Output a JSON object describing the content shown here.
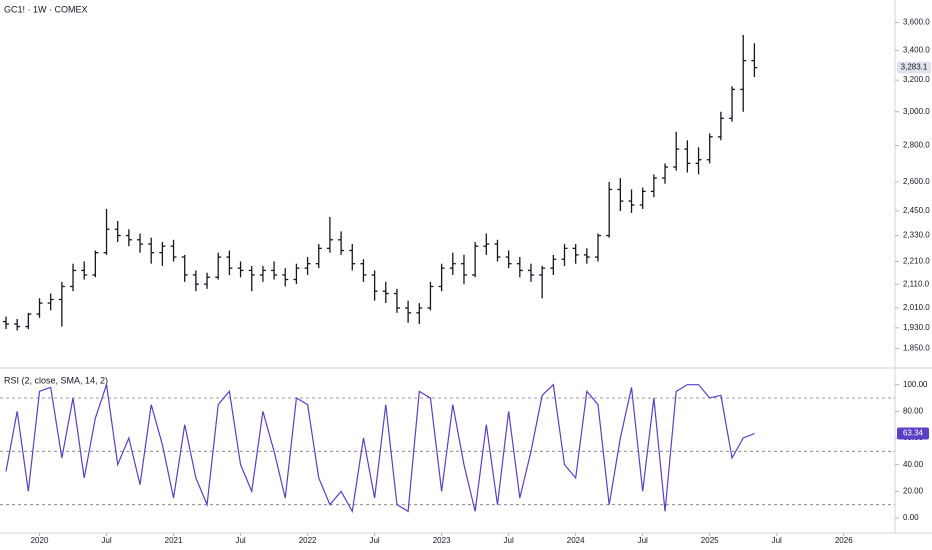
{
  "chart_data": [
    {
      "type": "ohlc",
      "title": "GC1! · 1W · COMEX",
      "log": true,
      "color": "#131722",
      "x": [
        "2019-10",
        "2019-11",
        "2019-12",
        "2020-01",
        "2020-02",
        "2020-03",
        "2020-04",
        "2020-05",
        "2020-06",
        "2020-07",
        "2020-08",
        "2020-09",
        "2020-10",
        "2020-11",
        "2020-12",
        "2021-01",
        "2021-02",
        "2021-03",
        "2021-04",
        "2021-05",
        "2021-06",
        "2021-07",
        "2021-08",
        "2021-09",
        "2021-10",
        "2021-11",
        "2021-12",
        "2022-01",
        "2022-02",
        "2022-03",
        "2022-04",
        "2022-05",
        "2022-06",
        "2022-07",
        "2022-08",
        "2022-09",
        "2022-10",
        "2022-11",
        "2022-12",
        "2023-01",
        "2023-02",
        "2023-03",
        "2023-04",
        "2023-05",
        "2023-06",
        "2023-07",
        "2023-08",
        "2023-09",
        "2023-10",
        "2023-11",
        "2023-12",
        "2024-01",
        "2024-02",
        "2024-03",
        "2024-04",
        "2024-05",
        "2024-06",
        "2024-07",
        "2024-08",
        "2024-09",
        "2024-10",
        "2024-11",
        "2024-12",
        "2025-01",
        "2025-02",
        "2025-03",
        "2025-04",
        "2025-05"
      ],
      "open": [
        1955,
        1945,
        1935,
        1985,
        2030,
        2045,
        2100,
        2170,
        2150,
        2250,
        2360,
        2330,
        2310,
        2290,
        2250,
        2280,
        2230,
        2150,
        2110,
        2140,
        2230,
        2180,
        2170,
        2150,
        2170,
        2150,
        2130,
        2180,
        2200,
        2270,
        2310,
        2260,
        2200,
        2150,
        2080,
        2070,
        2010,
        1990,
        2010,
        2100,
        2180,
        2200,
        2150,
        2280,
        2290,
        2230,
        2200,
        2170,
        2150,
        2180,
        2220,
        2270,
        2240,
        2230,
        2330,
        2560,
        2500,
        2480,
        2550,
        2620,
        2680,
        2780,
        2700,
        2720,
        2850,
        2960,
        3140,
        3330
      ],
      "high": [
        1975,
        1965,
        1990,
        2050,
        2070,
        2120,
        2200,
        2210,
        2260,
        2460,
        2400,
        2360,
        2340,
        2320,
        2300,
        2310,
        2240,
        2170,
        2160,
        2250,
        2260,
        2210,
        2190,
        2190,
        2210,
        2180,
        2200,
        2230,
        2290,
        2420,
        2350,
        2290,
        2220,
        2170,
        2120,
        2090,
        2040,
        2030,
        2120,
        2200,
        2250,
        2240,
        2300,
        2340,
        2310,
        2260,
        2230,
        2200,
        2190,
        2240,
        2290,
        2290,
        2270,
        2340,
        2600,
        2620,
        2560,
        2570,
        2640,
        2700,
        2880,
        2830,
        2790,
        2870,
        3000,
        3160,
        3510,
        3450
      ],
      "low": [
        1925,
        1920,
        1925,
        1970,
        2000,
        1935,
        2080,
        2130,
        2140,
        2240,
        2300,
        2280,
        2250,
        2200,
        2190,
        2210,
        2120,
        2080,
        2090,
        2130,
        2150,
        2140,
        2080,
        2120,
        2130,
        2100,
        2110,
        2150,
        2180,
        2250,
        2240,
        2170,
        2120,
        2040,
        2030,
        1990,
        1950,
        1945,
        2000,
        2080,
        2150,
        2110,
        2140,
        2240,
        2210,
        2180,
        2140,
        2120,
        2050,
        2150,
        2190,
        2200,
        2200,
        2210,
        2320,
        2450,
        2440,
        2460,
        2520,
        2590,
        2660,
        2650,
        2640,
        2700,
        2830,
        2940,
        3000,
        3220
      ],
      "close": [
        1945,
        1935,
        1985,
        2030,
        2045,
        2100,
        2170,
        2150,
        2250,
        2360,
        2330,
        2310,
        2290,
        2250,
        2280,
        2230,
        2150,
        2110,
        2140,
        2230,
        2180,
        2170,
        2150,
        2170,
        2150,
        2130,
        2180,
        2200,
        2270,
        2310,
        2260,
        2200,
        2150,
        2080,
        2070,
        2010,
        1990,
        2010,
        2100,
        2180,
        2200,
        2150,
        2280,
        2290,
        2230,
        2200,
        2170,
        2150,
        2180,
        2220,
        2270,
        2240,
        2230,
        2330,
        2560,
        2500,
        2480,
        2550,
        2620,
        2680,
        2780,
        2700,
        2720,
        2850,
        2960,
        3140,
        3330,
        3283.1
      ],
      "last_price": {
        "value": 3283.1,
        "label": "3,283.1"
      },
      "ylim": [
        1800,
        3700
      ],
      "yticks": [
        {
          "value": 1850,
          "label": "1,850.0"
        },
        {
          "value": 1930,
          "label": "1,930.0"
        },
        {
          "value": 2010,
          "label": "2,010.0"
        },
        {
          "value": 2110,
          "label": "2,110.0"
        },
        {
          "value": 2210,
          "label": "2,210.0"
        },
        {
          "value": 2330,
          "label": "2,330.0"
        },
        {
          "value": 2450,
          "label": "2,450.0"
        },
        {
          "value": 2600,
          "label": "2,600.0"
        },
        {
          "value": 2800,
          "label": "2,800.0"
        },
        {
          "value": 3000,
          "label": "3,000.0"
        },
        {
          "value": 3200,
          "label": "3,200.0"
        },
        {
          "value": 3400,
          "label": "3,400.0"
        },
        {
          "value": 3600,
          "label": "3,600.0"
        }
      ]
    },
    {
      "type": "line",
      "title": "RSI (2, close, SMA, 14, 2)",
      "color": "#5b3fc4",
      "values": [
        35,
        80,
        20,
        95,
        98,
        45,
        90,
        30,
        75,
        100,
        40,
        60,
        25,
        85,
        55,
        15,
        70,
        30,
        10,
        85,
        95,
        40,
        20,
        80,
        50,
        15,
        90,
        85,
        30,
        10,
        20,
        5,
        60,
        15,
        85,
        10,
        5,
        95,
        90,
        20,
        85,
        40,
        5,
        70,
        10,
        80,
        15,
        50,
        92,
        100,
        40,
        30,
        95,
        85,
        10,
        60,
        98,
        20,
        90,
        5,
        95,
        100,
        100,
        90,
        92,
        45,
        60,
        63.34
      ],
      "levels": [
        90,
        50,
        10
      ],
      "ylim": [
        -12,
        108
      ],
      "yticks": [
        {
          "value": 100,
          "label": "100.00"
        },
        {
          "value": 80,
          "label": "80.00"
        },
        {
          "value": 60,
          "label": "60.00"
        },
        {
          "value": 40,
          "label": "40.00"
        },
        {
          "value": 20,
          "label": "20.00"
        },
        {
          "value": 0,
          "label": "0.00"
        }
      ],
      "xticks": [
        {
          "value": "2020-01",
          "label": "2020"
        },
        {
          "value": "2020-07",
          "label": "Jul"
        },
        {
          "value": "2021-01",
          "label": "2021"
        },
        {
          "value": "2021-07",
          "label": "Jul"
        },
        {
          "value": "2022-01",
          "label": "2022"
        },
        {
          "value": "2022-07",
          "label": "Jul"
        },
        {
          "value": "2023-01",
          "label": "2023"
        },
        {
          "value": "2023-07",
          "label": "Jul"
        },
        {
          "value": "2024-01",
          "label": "2024"
        },
        {
          "value": "2024-07",
          "label": "Jul"
        },
        {
          "value": "2025-01",
          "label": "2025"
        },
        {
          "value": "2025-07",
          "label": "Jul"
        },
        {
          "value": "2026-01",
          "label": "2026"
        }
      ]
    }
  ]
}
